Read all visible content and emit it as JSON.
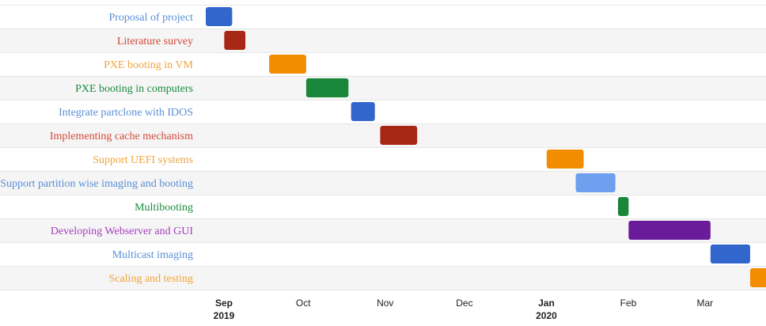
{
  "chart_data": {
    "type": "gantt",
    "x_start": "2019-08-29",
    "x_end": "2020-03-28",
    "tasks": [
      {
        "name": "Proposal of project",
        "start": "2019-08-29",
        "end": "2019-09-08",
        "color": "#3366cc",
        "label_color": "#5a8fd6"
      },
      {
        "name": "Literature survey",
        "start": "2019-09-05",
        "end": "2019-09-13",
        "color": "#a52714",
        "label_color": "#d34836"
      },
      {
        "name": "PXE booting in VM",
        "start": "2019-09-22",
        "end": "2019-10-06",
        "color": "#f28c00",
        "label_color": "#f2a33a"
      },
      {
        "name": "PXE booting in computers",
        "start": "2019-10-06",
        "end": "2019-10-22",
        "color": "#198639",
        "label_color": "#1b8b3e"
      },
      {
        "name": "Integrate partclone with IDOS",
        "start": "2019-10-23",
        "end": "2019-11-01",
        "color": "#3366cc",
        "label_color": "#5a8fd6"
      },
      {
        "name": "Implementing cache mechanism",
        "start": "2019-11-03",
        "end": "2019-11-17",
        "color": "#a52714",
        "label_color": "#d34836"
      },
      {
        "name": "Support UEFI systems",
        "start": "2020-01-05",
        "end": "2020-01-19",
        "color": "#f28c00",
        "label_color": "#f2a33a"
      },
      {
        "name": "Support partition wise imaging and booting",
        "start": "2020-01-16",
        "end": "2020-01-31",
        "color": "#6fa0f0",
        "label_color": "#5a8fd6"
      },
      {
        "name": "Multibooting",
        "start": "2020-02-01",
        "end": "2020-02-05",
        "color": "#198639",
        "label_color": "#1b8b3e"
      },
      {
        "name": "Developing Webserver and GUI",
        "start": "2020-02-05",
        "end": "2020-03-07",
        "color": "#6a1b9a",
        "label_color": "#a53dbf"
      },
      {
        "name": "Multicast imaging",
        "start": "2020-03-07",
        "end": "2020-03-22",
        "color": "#3366cc",
        "label_color": "#5a8fd6"
      },
      {
        "name": "Scaling and testing",
        "start": "2020-03-22",
        "end": "2020-04-05",
        "color": "#f28c00",
        "label_color": "#f2a33a"
      }
    ],
    "ticks": [
      {
        "date": "2019-09-01",
        "label": "Sep",
        "sublabel": "2019",
        "bold": true
      },
      {
        "date": "2019-10-01",
        "label": "Oct",
        "sublabel": "",
        "bold": false
      },
      {
        "date": "2019-11-01",
        "label": "Nov",
        "sublabel": "",
        "bold": false
      },
      {
        "date": "2019-12-01",
        "label": "Dec",
        "sublabel": "",
        "bold": false
      },
      {
        "date": "2020-01-01",
        "label": "Jan",
        "sublabel": "2020",
        "bold": true
      },
      {
        "date": "2020-02-01",
        "label": "Feb",
        "sublabel": "",
        "bold": false
      },
      {
        "date": "2020-03-01",
        "label": "Mar",
        "sublabel": "",
        "bold": false
      }
    ],
    "row_colors": [
      "#ffffff",
      "#f5f5f5"
    ],
    "grid_color": "#e6e6e6"
  }
}
